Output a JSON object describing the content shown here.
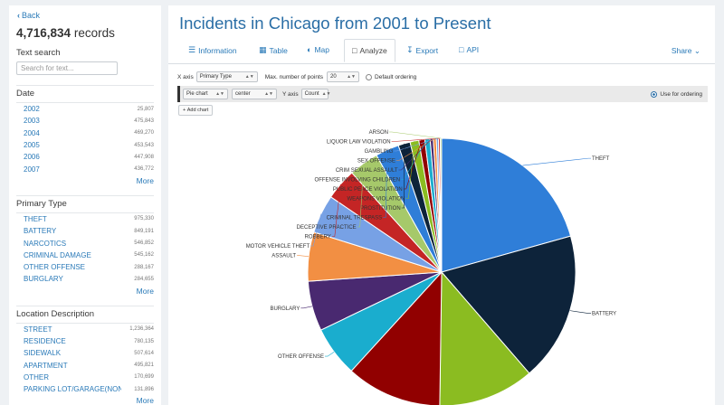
{
  "sidebar": {
    "back_label": "Back",
    "record_count": "4,716,834",
    "record_suffix": "records",
    "text_search_heading": "Text search",
    "search_placeholder": "Search for text...",
    "facets": [
      {
        "title": "Date",
        "more": "More",
        "items": [
          {
            "label": "2002",
            "count": "25,807"
          },
          {
            "label": "2003",
            "count": "475,843"
          },
          {
            "label": "2004",
            "count": "469,270"
          },
          {
            "label": "2005",
            "count": "453,543"
          },
          {
            "label": "2006",
            "count": "447,908"
          },
          {
            "label": "2007",
            "count": "436,772"
          }
        ]
      },
      {
        "title": "Primary Type",
        "more": "More",
        "items": [
          {
            "label": "THEFT",
            "count": "975,330"
          },
          {
            "label": "BATTERY",
            "count": "849,191"
          },
          {
            "label": "NARCOTICS",
            "count": "546,852"
          },
          {
            "label": "CRIMINAL DAMAGE",
            "count": "545,162"
          },
          {
            "label": "OTHER OFFENSE",
            "count": "288,167"
          },
          {
            "label": "BURGLARY",
            "count": "284,655"
          }
        ]
      },
      {
        "title": "Location Description",
        "more": "More",
        "items": [
          {
            "label": "STREET",
            "count": "1,236,364"
          },
          {
            "label": "RESIDENCE",
            "count": "780,135"
          },
          {
            "label": "SIDEWALK",
            "count": "507,614"
          },
          {
            "label": "APARTMENT",
            "count": "495,821"
          },
          {
            "label": "OTHER",
            "count": "170,699"
          },
          {
            "label": "PARKING LOT/GARAGE(NON...",
            "count": "131,896"
          }
        ]
      }
    ]
  },
  "main": {
    "title": "Incidents in Chicago from 2001 to Present",
    "tabs": [
      {
        "label": "Information",
        "icon": "list-icon"
      },
      {
        "label": "Table",
        "icon": "table-icon"
      },
      {
        "label": "Map",
        "icon": "globe-icon"
      },
      {
        "label": "Analyze",
        "icon": "chart-icon"
      },
      {
        "label": "Export",
        "icon": "download-icon"
      },
      {
        "label": "API",
        "icon": "laptop-icon"
      }
    ],
    "share_label": "Share",
    "controls": {
      "x_axis_label": "X axis",
      "x_axis_value": "Primary Type",
      "max_points_label": "Max. number of points",
      "max_points_value": "20",
      "default_ordering_label": "Default ordering"
    },
    "series": {
      "chart_type": "Pie chart",
      "align": "center",
      "y_axis_label": "Y axis",
      "y_axis_value": "Count",
      "use_for_ordering_label": "Use for ordering"
    },
    "add_chart_label": "Add chart"
  },
  "colors": {
    "link": "#2a7ab8",
    "title": "#2a6ea6"
  },
  "chart_data": {
    "type": "pie",
    "labels": [
      "THEFT",
      "BATTERY",
      "NARCOTICS",
      "CRIMINAL DAMAGE",
      "OTHER OFFENSE",
      "BURGLARY",
      "ASSAULT",
      "MOTOR VEHICLE THEFT",
      "ROBBERY",
      "DECEPTIVE PRACTICE",
      "CRIMINAL TRESPASS",
      "PROSTITUTION",
      "WEAPONS VIOLATION",
      "PUBLIC PEACE VIOLATION",
      "OFFENSE INVOLVING CHILDREN",
      "CRIM SEXUAL ASSAULT",
      "SEX OFFENSE",
      "GAMBLING",
      "LIQUOR LAW VIOLATION",
      "ARSON"
    ],
    "values": [
      975330,
      849191,
      546852,
      545162,
      288167,
      284655,
      280000,
      220000,
      180000,
      170000,
      135000,
      68000,
      50000,
      34000,
      30000,
      18000,
      17000,
      12000,
      10000,
      8000
    ],
    "shown_labels": [
      "THEFT",
      "BATTERY",
      "OTHER OFFENSE",
      "BURGLARY",
      "ASSAULT",
      "MOTOR VEHICLE THEFT",
      "ROBBERY",
      "DECEPTIVE PRACTICE",
      "CRIMINAL TRESPASS",
      "PROSTITUTION",
      "WEAPONS VIOLATION",
      "PUBLIC PEACE VIOLATION",
      "OFFENSE INVOLVING CHILDREN",
      "CRIM SEXUAL ASSAULT",
      "SEX OFFENSE",
      "GAMBLING",
      "LIQUOR LAW VIOLATION",
      "ARSON"
    ],
    "colors": [
      "#2f7ed8",
      "#0d233a",
      "#8bbc21",
      "#910000",
      "#1aadce",
      "#492970",
      "#f28f43",
      "#77a1e5",
      "#c42525",
      "#a6c96a",
      "#2f7ed8",
      "#0d233a",
      "#8bbc21",
      "#910000",
      "#1aadce",
      "#492970",
      "#f28f43",
      "#77a1e5",
      "#c42525",
      "#a6c96a"
    ],
    "title": "",
    "legend": "none"
  }
}
